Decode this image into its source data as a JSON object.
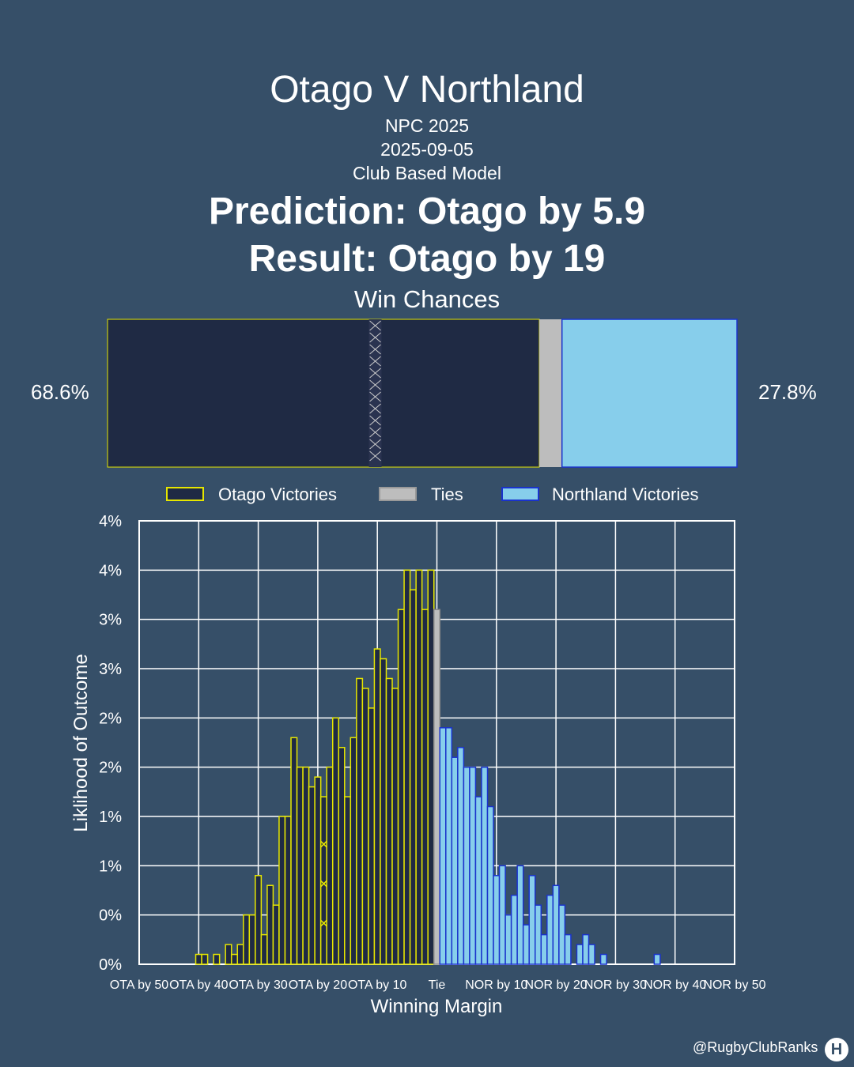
{
  "header": {
    "title": "Otago V Northland",
    "competition": "NPC 2025",
    "date": "2025-09-05",
    "model": "Club Based Model",
    "prediction": "Prediction: Otago by 5.9",
    "result": "Result: Otago by 19",
    "win_chances_title": "Win Chances"
  },
  "win_bar": {
    "home_pct_label": "68.6%",
    "away_pct_label": "27.8%",
    "home": 68.6,
    "tie": 3.6,
    "away": 27.8,
    "actual_result_marker_margin": -19
  },
  "legend": {
    "home": "Otago Victories",
    "tie": "Ties",
    "away": "Northland Victories"
  },
  "colors": {
    "background": "#364f68",
    "home_fill": "#1f2a44",
    "home_edge": "#e6e600",
    "tie_fill": "#bdbdbd",
    "away_fill": "#87ceeb",
    "away_edge": "#1a33cc",
    "grid": "#ffffff"
  },
  "chart_data": {
    "type": "bar",
    "xlabel": "Winning Margin",
    "ylabel": "Liklihood of Outcome",
    "xlim": [
      -50,
      50
    ],
    "ylim": [
      0,
      4.5
    ],
    "grid": true,
    "legend_position": "top",
    "x_ticks": [
      {
        "value": -50,
        "label": "OTA by 50"
      },
      {
        "value": -40,
        "label": "OTA by 40"
      },
      {
        "value": -30,
        "label": "OTA by 30"
      },
      {
        "value": -20,
        "label": "OTA by 20"
      },
      {
        "value": -10,
        "label": "OTA by 10"
      },
      {
        "value": 0,
        "label": "Tie"
      },
      {
        "value": 10,
        "label": "NOR by 10"
      },
      {
        "value": 20,
        "label": "NOR by 20"
      },
      {
        "value": 30,
        "label": "NOR by 30"
      },
      {
        "value": 40,
        "label": "NOR by 40"
      },
      {
        "value": 50,
        "label": "NOR by 50"
      }
    ],
    "y_ticks": [
      {
        "value": 0,
        "label": "0%"
      },
      {
        "value": 0.5,
        "label": "0%"
      },
      {
        "value": 1.0,
        "label": "1%"
      },
      {
        "value": 1.5,
        "label": "1%"
      },
      {
        "value": 2.0,
        "label": "2%"
      },
      {
        "value": 2.5,
        "label": "2%"
      },
      {
        "value": 3.0,
        "label": "3%"
      },
      {
        "value": 3.5,
        "label": "3%"
      },
      {
        "value": 4.0,
        "label": "4%"
      },
      {
        "value": 4.5,
        "label": "4%"
      }
    ],
    "series": [
      {
        "name": "Otago Victories",
        "x": [
          -40,
          -39,
          -37,
          -35,
          -34,
          -33,
          -32,
          -31,
          -30,
          -29,
          -28,
          -27,
          -26,
          -25,
          -24,
          -23,
          -22,
          -21,
          -20,
          -19,
          -18,
          -17,
          -16,
          -15,
          -14,
          -13,
          -12,
          -11,
          -10,
          -9,
          -8,
          -7,
          -6,
          -5,
          -4,
          -3,
          -2,
          -1
        ],
        "values": [
          0.1,
          0.1,
          0.1,
          0.2,
          0.1,
          0.2,
          0.5,
          0.5,
          0.9,
          0.3,
          0.8,
          0.6,
          1.5,
          1.5,
          2.3,
          2.0,
          2.0,
          1.8,
          1.9,
          1.7,
          2.0,
          2.5,
          2.2,
          1.7,
          2.3,
          2.9,
          2.8,
          2.6,
          3.2,
          3.1,
          2.9,
          2.8,
          3.6,
          4.0,
          3.8,
          4.0,
          3.6,
          4.0
        ]
      },
      {
        "name": "Ties",
        "x": [
          0
        ],
        "values": [
          3.6
        ]
      },
      {
        "name": "Northland Victories",
        "x": [
          1,
          2,
          3,
          4,
          5,
          6,
          7,
          8,
          9,
          10,
          11,
          12,
          13,
          14,
          15,
          16,
          17,
          18,
          19,
          20,
          21,
          22,
          24,
          25,
          26,
          28,
          37
        ],
        "values": [
          2.4,
          2.4,
          2.1,
          2.2,
          2.0,
          2.0,
          1.7,
          2.0,
          1.6,
          0.9,
          1.0,
          0.5,
          0.7,
          1.0,
          0.4,
          0.9,
          0.6,
          0.3,
          0.7,
          0.8,
          0.6,
          0.3,
          0.2,
          0.3,
          0.2,
          0.1,
          0.1
        ]
      }
    ]
  },
  "footer": {
    "handle": "@RugbyClubRanks",
    "logo_glyph": "H"
  }
}
